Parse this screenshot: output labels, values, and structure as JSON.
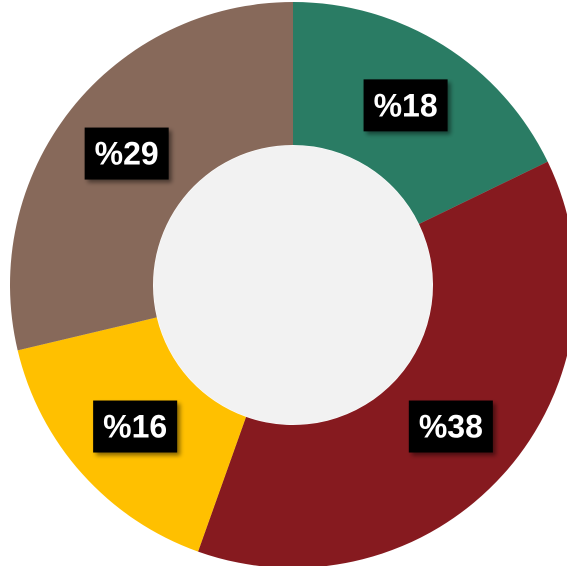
{
  "chart_data": {
    "type": "donut",
    "values": [
      18,
      38,
      16,
      29
    ],
    "value_labels": [
      "%18",
      "%38",
      "%16",
      "%29"
    ],
    "colors": [
      "#2a7c64",
      "#861a1f",
      "#ffc000",
      "#87695a"
    ]
  }
}
